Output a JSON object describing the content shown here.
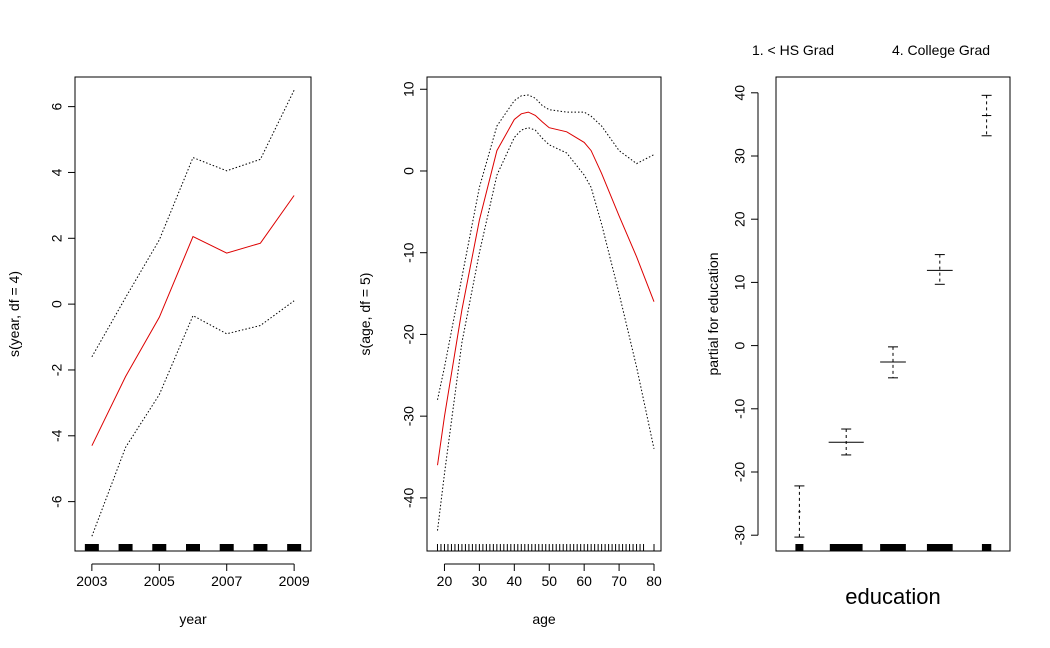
{
  "chart_data": [
    {
      "type": "line",
      "xlabel": "year",
      "ylabel": "s(year, df = 4)",
      "xlim": [
        2002.5,
        2009.5
      ],
      "ylim": [
        -7.5,
        6.9
      ],
      "x_ticks": [
        2003,
        2005,
        2007,
        2009
      ],
      "x_tick_labels": [
        "2003",
        "2005",
        "2007",
        "2009"
      ],
      "y_ticks": [
        -6,
        -4,
        -2,
        0,
        2,
        4,
        6
      ],
      "y_tick_labels": [
        "-6",
        "-4",
        "-2",
        "0",
        "2",
        "4",
        "6"
      ],
      "x": [
        2003,
        2004,
        2005,
        2006,
        2007,
        2008,
        2009
      ],
      "series": [
        {
          "role": "fit",
          "color": "#dd0000",
          "style": "solid",
          "values": [
            -4.3,
            -2.2,
            -0.4,
            2.05,
            1.55,
            1.85,
            3.3
          ]
        },
        {
          "role": "upper",
          "color": "#000000",
          "style": "dotted",
          "values": [
            -1.6,
            0.2,
            1.95,
            4.45,
            4.05,
            4.4,
            6.5
          ]
        },
        {
          "role": "lower",
          "color": "#000000",
          "style": "dotted",
          "values": [
            -7.05,
            -4.35,
            -2.75,
            -0.35,
            -0.9,
            -0.65,
            0.1
          ]
        }
      ],
      "rug": [
        2003,
        2004,
        2005,
        2006,
        2007,
        2008,
        2009
      ]
    },
    {
      "type": "line",
      "xlabel": "age",
      "ylabel": "s(age, df = 5)",
      "xlim": [
        15,
        82
      ],
      "ylim": [
        -46.5,
        11.5
      ],
      "x_ticks": [
        20,
        30,
        40,
        50,
        60,
        70,
        80
      ],
      "x_tick_labels": [
        "20",
        "30",
        "40",
        "50",
        "60",
        "70",
        "80"
      ],
      "y_ticks": [
        -40,
        -30,
        -20,
        -10,
        0,
        10
      ],
      "y_tick_labels": [
        "-40",
        "-30",
        "-20",
        "-10",
        "0",
        "10"
      ],
      "x": [
        18,
        20,
        25,
        30,
        35,
        40,
        42,
        44,
        46,
        48,
        50,
        55,
        60,
        62,
        65,
        70,
        75,
        80
      ],
      "series": [
        {
          "role": "fit",
          "color": "#dd0000",
          "style": "solid",
          "values": [
            -36,
            -30,
            -17,
            -6,
            2.5,
            6.3,
            7.0,
            7.2,
            6.8,
            6.0,
            5.3,
            4.8,
            3.5,
            2.5,
            -0.3,
            -5.5,
            -10.5,
            -16
          ]
        },
        {
          "role": "upper",
          "color": "#000000",
          "style": "dotted",
          "values": [
            -28,
            -24,
            -13,
            -2,
            5.5,
            8.6,
            9.2,
            9.3,
            8.9,
            8.0,
            7.5,
            7.2,
            7.2,
            6.7,
            5.5,
            2.5,
            0.9,
            2.0
          ]
        },
        {
          "role": "lower",
          "color": "#000000",
          "style": "dotted",
          "values": [
            -44,
            -37,
            -21,
            -10,
            -0.5,
            4.1,
            5.0,
            5.3,
            5.0,
            4.0,
            3.2,
            2.2,
            -0.5,
            -2.0,
            -6.5,
            -15,
            -24,
            -34
          ]
        }
      ],
      "rug": [
        18,
        19,
        20,
        21,
        22,
        23,
        24,
        25,
        26,
        27,
        28,
        29,
        30,
        31,
        32,
        33,
        34,
        35,
        36,
        37,
        38,
        39,
        40,
        41,
        42,
        43,
        44,
        45,
        46,
        47,
        48,
        49,
        50,
        51,
        52,
        53,
        54,
        55,
        56,
        57,
        58,
        59,
        60,
        61,
        62,
        63,
        64,
        65,
        66,
        67,
        68,
        69,
        70,
        71,
        72,
        73,
        74,
        75,
        76,
        77,
        80
      ]
    },
    {
      "type": "errorbar",
      "xlabel": "education",
      "ylabel": "partial for education",
      "ylim": [
        -32.5,
        42.5
      ],
      "y_ticks": [
        -30,
        -20,
        -10,
        0,
        10,
        20,
        30,
        40
      ],
      "y_tick_labels": [
        "-30",
        "-20",
        "-10",
        "0",
        "10",
        "20",
        "30",
        "40"
      ],
      "top_labels": [
        "1. < HS Grad",
        "4. College Grad"
      ],
      "categories": [
        "1",
        "2",
        "3",
        "4",
        "5"
      ],
      "values": [
        -26.3,
        -15.3,
        -2.6,
        11.9,
        36.4
      ],
      "upper": [
        -22.2,
        -13.2,
        -0.2,
        14.4,
        39.6
      ],
      "lower": [
        -30.3,
        -17.3,
        -5.1,
        9.7,
        33.2
      ],
      "widths": [
        0.05,
        0.75,
        0.55,
        0.55,
        0.2
      ]
    }
  ]
}
